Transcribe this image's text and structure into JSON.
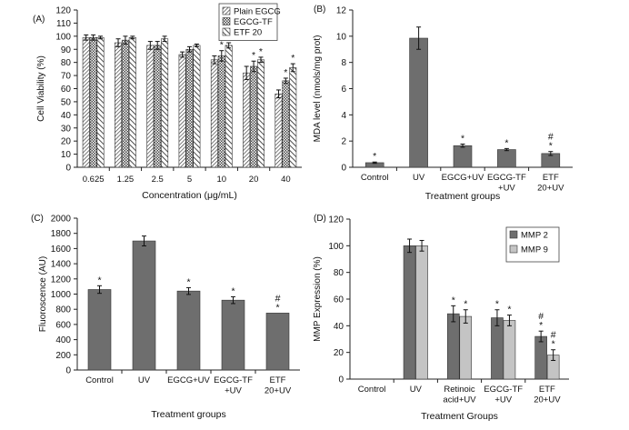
{
  "colors": {
    "axis": "#222222",
    "bar_dark": "#6e6e6e",
    "bar_light": "#c4c4c4",
    "hatch": "#333333"
  },
  "chart_data": [
    {
      "panel": "(A)",
      "type": "bar",
      "title": "",
      "xlabel": "Concentration (μg/mL)",
      "ylabel": "Cell Viability (%)",
      "ylim": [
        0,
        120
      ],
      "yticks": [
        "0",
        "10",
        "20",
        "30",
        "40",
        "50",
        "60",
        "70",
        "80",
        "90",
        "100",
        "110",
        "120"
      ],
      "categories": [
        "0.625",
        "1.25",
        "2.5",
        "5",
        "10",
        "20",
        "40"
      ],
      "legend": "top-right",
      "series": [
        {
          "name": "Plain EGCG",
          "values": [
            99,
            95,
            93,
            86,
            82,
            72,
            56
          ],
          "errors": [
            2,
            3,
            3,
            2,
            3,
            5,
            3
          ],
          "stars": [
            "",
            "",
            "",
            "",
            "",
            "",
            ""
          ]
        },
        {
          "name": "EGCG-TF",
          "values": [
            99,
            97,
            93,
            90,
            85,
            77,
            66
          ],
          "errors": [
            2,
            3,
            3,
            2,
            4,
            4,
            2
          ],
          "stars": [
            "",
            "",
            "",
            "",
            "*",
            "*",
            "*"
          ]
        },
        {
          "name": "ETF 20",
          "values": [
            99,
            99,
            98,
            93,
            93,
            82,
            76
          ],
          "errors": [
            1,
            1,
            2,
            1,
            2,
            2,
            3
          ],
          "stars": [
            "",
            "",
            "",
            "",
            "*",
            "*",
            "*"
          ]
        }
      ]
    },
    {
      "panel": "(B)",
      "type": "bar",
      "title": "",
      "xlabel": "Treatment groups",
      "ylabel": "MDA level (nmols/mg prot)",
      "ylim": [
        0,
        12
      ],
      "yticks": [
        "0",
        "2",
        "4",
        "6",
        "8",
        "10",
        "12"
      ],
      "categories": [
        [
          "Control"
        ],
        [
          "UV"
        ],
        [
          "EGCG+UV"
        ],
        [
          "EGCG-TF",
          "+UV"
        ],
        [
          "ETF",
          "20+UV"
        ]
      ],
      "series": [
        {
          "name": "MDA",
          "values": [
            0.35,
            9.85,
            1.65,
            1.35,
            1.05
          ],
          "errors": [
            0.05,
            0.85,
            0.12,
            0.08,
            0.15
          ],
          "marks": [
            [
              "*"
            ],
            [],
            [
              "*"
            ],
            [
              "*"
            ],
            [
              "#",
              "*"
            ]
          ]
        }
      ]
    },
    {
      "panel": "(C)",
      "type": "bar",
      "title": "",
      "xlabel": "Treatment groups",
      "ylabel": "Fluoroscence (AU)",
      "ylim": [
        0,
        2000
      ],
      "yticks": [
        "0",
        "200",
        "400",
        "600",
        "800",
        "1000",
        "1200",
        "1400",
        "1600",
        "1800",
        "2000"
      ],
      "categories": [
        [
          "Control"
        ],
        [
          "UV"
        ],
        [
          "EGCG+UV"
        ],
        [
          "EGCG-TF",
          "+UV"
        ],
        [
          "ETF",
          "20+UV"
        ]
      ],
      "series": [
        {
          "name": "Fluorescence",
          "values": [
            1060,
            1700,
            1040,
            920,
            750
          ],
          "errors": [
            50,
            65,
            45,
            45,
            0
          ],
          "marks": [
            [
              "*"
            ],
            [],
            [
              "*"
            ],
            [
              "*"
            ],
            [
              "#",
              "*"
            ]
          ]
        }
      ]
    },
    {
      "panel": "(D)",
      "type": "bar",
      "title": "",
      "xlabel": "Treatment Groups",
      "ylabel": "MMP Expression (%)",
      "ylim": [
        0,
        120
      ],
      "yticks": [
        "0",
        "20",
        "40",
        "60",
        "80",
        "100",
        "120"
      ],
      "categories": [
        [
          "Control"
        ],
        [
          "UV"
        ],
        [
          "Retinoic",
          "acid+UV"
        ],
        [
          "EGCG-TF",
          "+UV"
        ],
        [
          "ETF",
          "20+UV"
        ]
      ],
      "legend": "top-right",
      "series": [
        {
          "name": "MMP 2",
          "values": [
            0,
            100,
            49,
            46,
            32
          ],
          "errors": [
            0,
            5,
            6,
            6,
            4
          ],
          "marks": [
            [],
            [],
            [
              "*"
            ],
            [
              "*"
            ],
            [
              "#",
              "*"
            ]
          ]
        },
        {
          "name": "MMP 9",
          "values": [
            0,
            100,
            47,
            44,
            18
          ],
          "errors": [
            0,
            4,
            5,
            4,
            4
          ],
          "marks": [
            [],
            [],
            [
              "*"
            ],
            [
              "*"
            ],
            [
              "#",
              "*"
            ]
          ]
        }
      ]
    }
  ]
}
